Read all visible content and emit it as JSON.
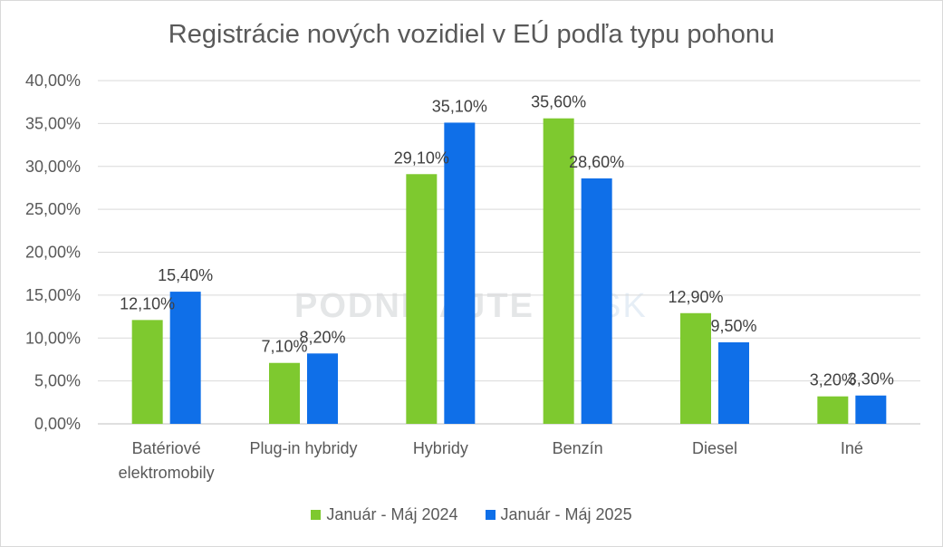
{
  "chart_data": {
    "type": "bar",
    "title": "Registrácie nových vozidiel v EÚ podľa typu pohonu",
    "categories": [
      [
        "Batériové",
        "elektromobily"
      ],
      [
        "Plug-in hybridy"
      ],
      [
        "Hybridy"
      ],
      [
        "Benzín"
      ],
      [
        "Diesel"
      ],
      [
        "Iné"
      ]
    ],
    "series": [
      {
        "name": "Január - Máj 2024",
        "color": "#7ec92f",
        "values": [
          12.1,
          7.1,
          29.1,
          35.6,
          12.9,
          3.2
        ],
        "labels": [
          "12,10%",
          "7,10%",
          "29,10%",
          "35,60%",
          "12,90%",
          "3,20%"
        ]
      },
      {
        "name": "Január - Máj 2025",
        "color": "#0f6fe8",
        "values": [
          15.4,
          8.2,
          35.1,
          28.6,
          9.5,
          3.3
        ],
        "labels": [
          "15,40%",
          "8,20%",
          "35,10%",
          "28,60%",
          "9,50%",
          "3,30%"
        ]
      }
    ],
    "ylim": [
      0,
      40
    ],
    "yticks": [
      "0,00%",
      "5,00%",
      "10,00%",
      "15,00%",
      "20,00%",
      "25,00%",
      "30,00%",
      "35,00%",
      "40,00%"
    ],
    "grid": true,
    "legend_position": "bottom",
    "watermark": "PODNIKAJTE.SK"
  }
}
